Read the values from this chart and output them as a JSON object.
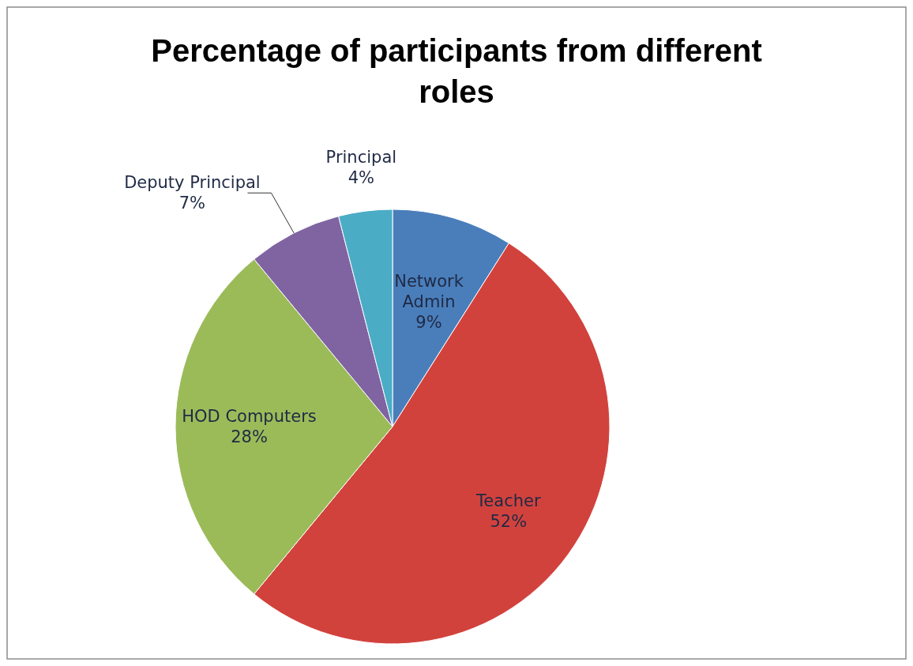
{
  "chart_data": {
    "type": "pie",
    "title": "Percentage of participants from different roles",
    "categories": [
      "Network Admin",
      "Teacher",
      "HOD Computers",
      "Deputy Principal",
      "Principal"
    ],
    "values": [
      9,
      52,
      28,
      7,
      4
    ],
    "colors": [
      "#4a7ebb",
      "#d2423d",
      "#9bbb59",
      "#8064a2",
      "#4bacc6"
    ],
    "value_labels": [
      "9%",
      "52%",
      "28%",
      "7%",
      "4%"
    ]
  }
}
